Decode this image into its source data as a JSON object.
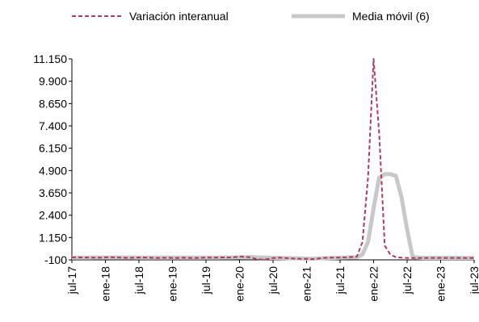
{
  "chart_data": {
    "type": "line",
    "title": "",
    "xlabel": "",
    "ylabel": "",
    "ylim": [
      -100,
      11150
    ],
    "yticks": [
      "11.150",
      "9.900",
      "8.650",
      "7.400",
      "6.150",
      "4.900",
      "3.650",
      "2.400",
      "1.150",
      "-100"
    ],
    "ytick_values": [
      11150,
      9900,
      8650,
      7400,
      6150,
      4900,
      3650,
      2400,
      1150,
      -100
    ],
    "xticks": [
      "jul-17",
      "ene-18",
      "jul-18",
      "ene-19",
      "jul-19",
      "ene-20",
      "jul-20",
      "ene-21",
      "jul-21",
      "ene-22",
      "jul-22",
      "ene-23",
      "jul-23"
    ],
    "grid": false,
    "legend_position": "top",
    "x": [
      "jul-17",
      "ago-17",
      "sep-17",
      "oct-17",
      "nov-17",
      "dic-17",
      "ene-18",
      "feb-18",
      "mar-18",
      "abr-18",
      "may-18",
      "jun-18",
      "jul-18",
      "ago-18",
      "sep-18",
      "oct-18",
      "nov-18",
      "dic-18",
      "ene-19",
      "feb-19",
      "mar-19",
      "abr-19",
      "may-19",
      "jun-19",
      "jul-19",
      "ago-19",
      "sep-19",
      "oct-19",
      "nov-19",
      "dic-19",
      "ene-20",
      "feb-20",
      "mar-20",
      "abr-20",
      "may-20",
      "jun-20",
      "jul-20",
      "ago-20",
      "sep-20",
      "oct-20",
      "nov-20",
      "dic-20",
      "ene-21",
      "feb-21",
      "mar-21",
      "abr-21",
      "may-21",
      "jun-21",
      "jul-21",
      "ago-21",
      "sep-21",
      "oct-21",
      "nov-21",
      "dic-21",
      "ene-22",
      "feb-22",
      "mar-22",
      "abr-22",
      "may-22",
      "jun-22",
      "jul-22",
      "ago-22",
      "sep-22",
      "oct-22",
      "nov-22",
      "dic-22",
      "ene-23",
      "feb-23",
      "mar-23",
      "abr-23",
      "may-23",
      "jun-23",
      "jul-23"
    ],
    "series": [
      {
        "name": "Variación interanual",
        "color": "#b03a5e",
        "style": "dashed",
        "values": [
          40,
          40,
          30,
          30,
          20,
          20,
          40,
          50,
          40,
          20,
          10,
          20,
          30,
          30,
          20,
          10,
          10,
          20,
          10,
          10,
          20,
          10,
          10,
          10,
          30,
          20,
          30,
          40,
          30,
          50,
          80,
          70,
          40,
          -50,
          -80,
          -60,
          0,
          20,
          10,
          -20,
          -30,
          -40,
          -40,
          -60,
          -30,
          10,
          20,
          20,
          30,
          40,
          60,
          80,
          900,
          4500,
          11150,
          7000,
          700,
          200,
          50,
          20,
          10,
          10,
          0,
          0,
          10,
          10,
          10,
          10,
          10,
          10,
          10,
          0,
          0
        ]
      },
      {
        "name": "Media móvil (6)",
        "color": "#c8c8c8",
        "style": "solid",
        "values": [
          20,
          20,
          20,
          20,
          30,
          30,
          30,
          30,
          30,
          30,
          30,
          30,
          20,
          20,
          20,
          20,
          20,
          20,
          20,
          20,
          20,
          20,
          20,
          20,
          20,
          20,
          20,
          30,
          30,
          30,
          40,
          50,
          60,
          40,
          30,
          20,
          10,
          10,
          0,
          -10,
          -10,
          -20,
          -30,
          -30,
          -20,
          -10,
          0,
          10,
          20,
          30,
          40,
          50,
          200,
          900,
          2800,
          4500,
          4700,
          4700,
          4600,
          3400,
          1600,
          60,
          20,
          10,
          10,
          10,
          10,
          10,
          10,
          10,
          10,
          10,
          10
        ]
      }
    ]
  }
}
